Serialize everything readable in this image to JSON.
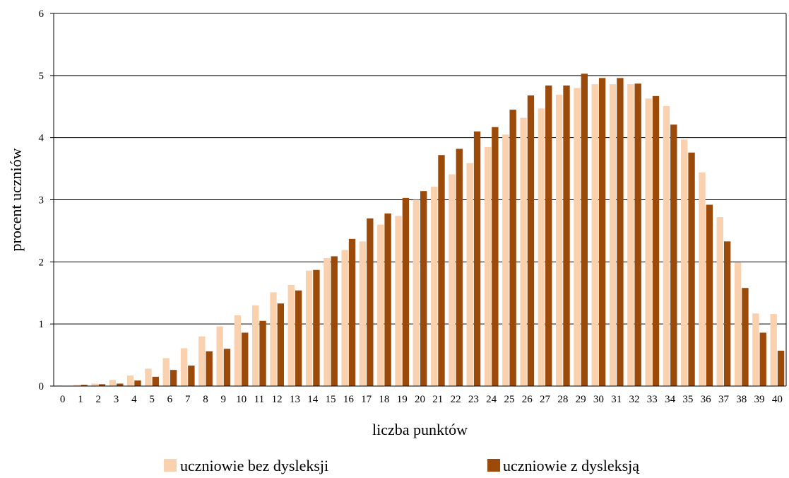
{
  "chart_data": {
    "type": "bar",
    "title": "",
    "xlabel": "liczba punktów",
    "ylabel": "procent uczniów",
    "ylim": [
      0,
      6
    ],
    "yticks": [
      "0",
      "1",
      "2",
      "3",
      "4",
      "5",
      "6"
    ],
    "grid": true,
    "legend_position": "bottom",
    "categories": [
      "0",
      "1",
      "2",
      "3",
      "4",
      "5",
      "6",
      "7",
      "8",
      "9",
      "10",
      "11",
      "12",
      "13",
      "14",
      "15",
      "16",
      "17",
      "18",
      "19",
      "20",
      "21",
      "22",
      "23",
      "24",
      "25",
      "26",
      "27",
      "28",
      "29",
      "30",
      "31",
      "32",
      "33",
      "34",
      "35",
      "36",
      "37",
      "38",
      "39",
      "40"
    ],
    "series": [
      {
        "name": "uczniowie bez dysleksji",
        "color": "#FAD1AE",
        "values": [
          0.01,
          0.02,
          0.04,
          0.1,
          0.17,
          0.28,
          0.45,
          0.61,
          0.8,
          0.96,
          1.14,
          1.3,
          1.51,
          1.63,
          1.86,
          2.06,
          2.19,
          2.33,
          2.6,
          2.74,
          3.0,
          3.21,
          3.41,
          3.59,
          3.85,
          4.05,
          4.32,
          4.47,
          4.69,
          4.8,
          4.86,
          4.86,
          4.86,
          4.63,
          4.51,
          3.97,
          3.44,
          2.72,
          1.99,
          1.17,
          1.16
        ]
      },
      {
        "name": "uczniowie z dysleksją",
        "color": "#9C4A0A",
        "values": [
          0.0,
          0.02,
          0.03,
          0.04,
          0.09,
          0.15,
          0.26,
          0.33,
          0.56,
          0.6,
          0.86,
          1.05,
          1.33,
          1.54,
          1.87,
          2.09,
          2.37,
          2.7,
          2.78,
          3.03,
          3.14,
          3.72,
          3.82,
          4.1,
          4.17,
          4.45,
          4.68,
          4.84,
          4.84,
          5.03,
          4.96,
          4.96,
          4.87,
          4.67,
          4.21,
          3.76,
          2.92,
          2.33,
          1.58,
          0.86,
          0.57
        ]
      }
    ]
  }
}
